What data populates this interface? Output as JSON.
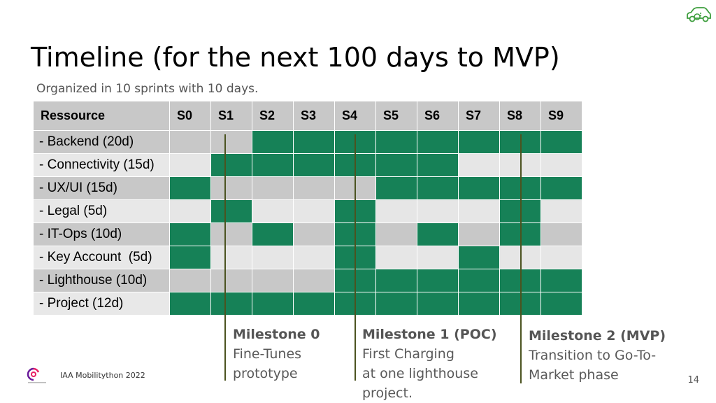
{
  "title": "Timeline (for the next 100 days to MVP)",
  "subtitle": "Organized in 10 sprints with 10 days.",
  "table": {
    "header": [
      "Ressource",
      "S0",
      "S1",
      "S2",
      "S3",
      "S4",
      "S5",
      "S6",
      "S7",
      "S8",
      "S9"
    ],
    "rows": [
      {
        "label": "- Backend (20d)",
        "cells": [
          "o",
          "o",
          "g",
          "g",
          "g",
          "g",
          "g",
          "g",
          "g",
          "g"
        ]
      },
      {
        "label": "- Connectivity (15d)",
        "cells": [
          "e",
          "g",
          "g",
          "g",
          "g",
          "g",
          "g",
          "e",
          "e",
          "e"
        ]
      },
      {
        "label": "- UX/UI (15d)",
        "cells": [
          "g",
          "o",
          "o",
          "o",
          "o",
          "g",
          "g",
          "g",
          "g",
          "g"
        ]
      },
      {
        "label": "- Legal (5d)",
        "cells": [
          "e",
          "g",
          "e",
          "e",
          "g",
          "e",
          "e",
          "e",
          "g",
          "e"
        ]
      },
      {
        "label": "- IT-Ops (10d)",
        "cells": [
          "g",
          "o",
          "g",
          "o",
          "g",
          "o",
          "g",
          "o",
          "g",
          "o"
        ]
      },
      {
        "label": "- Key Account  (5d)",
        "cells": [
          "g",
          "e",
          "e",
          "e",
          "g",
          "e",
          "e",
          "g",
          "e",
          "e"
        ]
      },
      {
        "label": "- Lighthouse (10d)",
        "cells": [
          "o",
          "o",
          "o",
          "o",
          "g",
          "g",
          "g",
          "g",
          "g",
          "g"
        ]
      },
      {
        "label": "- Project (12d)",
        "cells": [
          "g",
          "g",
          "g",
          "g",
          "g",
          "g",
          "g",
          "g",
          "g",
          "g"
        ]
      }
    ]
  },
  "milestones": [
    {
      "title": "Milestone 0",
      "lines": [
        "Fine-Tunes",
        "prototype"
      ]
    },
    {
      "title": "Milestone 1 (POC)",
      "lines": [
        "First Charging",
        "at one lighthouse",
        "project."
      ]
    },
    {
      "title": "Milestone 2 (MVP)",
      "lines": [
        "Transition to Go-To-",
        "Market phase"
      ]
    }
  ],
  "footer": "IAA Mobilitython 2022",
  "page_number": "14",
  "colors": {
    "green": "#168157",
    "grey": "#c8c8c8",
    "light": "#e6e6e6",
    "milestone_line": "#4b5320"
  },
  "icons": {
    "top_right": "electric-car-icon",
    "bottom_left": "event-logo-icon"
  }
}
